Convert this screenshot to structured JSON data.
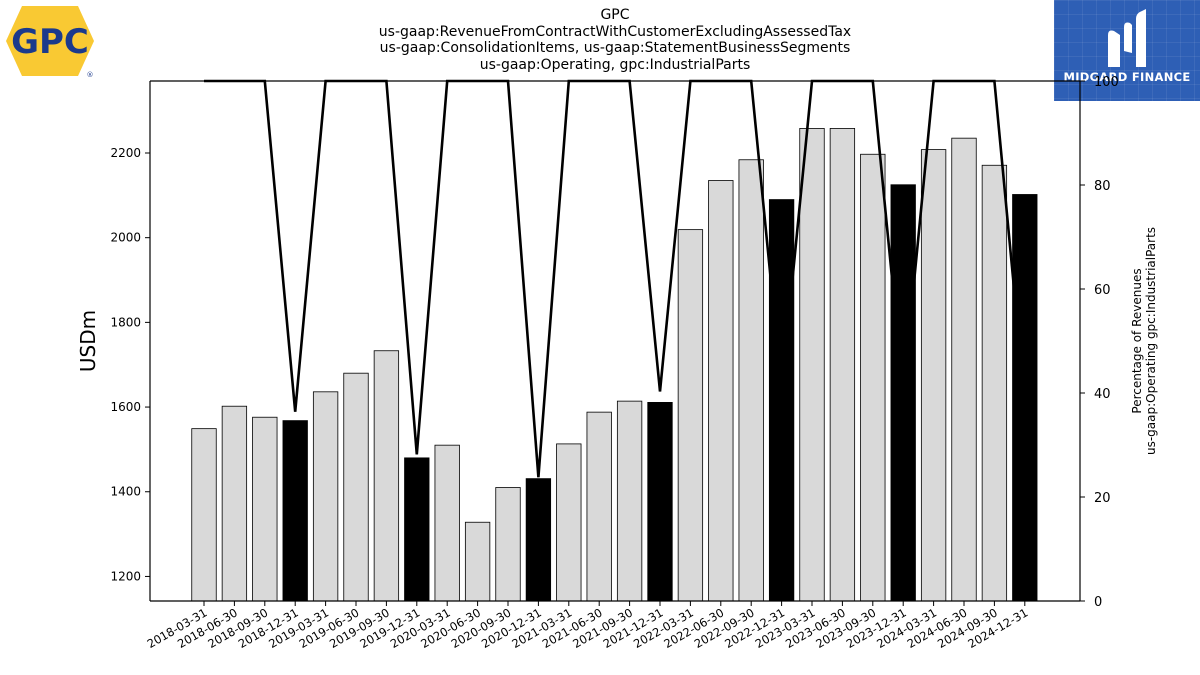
{
  "title_lines": [
    "GPC",
    "us-gaap:RevenueFromContractWithCustomerExcludingAssessedTax",
    "us-gaap:ConsolidationItems, us-gaap:StatementBusinessSegments",
    "us-gaap:Operating, gpc:IndustrialParts"
  ],
  "logos": {
    "left_text": "GPC",
    "left_registered": "®",
    "right_brand": "MIDGARD FINANCE"
  },
  "colors": {
    "bar_regular": "#d9d9d9",
    "bar_q4": "#000000",
    "line": "#000000",
    "brand_blue": "#2e5fb5",
    "gpc_yellow": "#f9c933",
    "gpc_blue": "#1b3a8c"
  },
  "chart_data": {
    "type": "bar",
    "title": "GPC",
    "ylabel": "USDm",
    "y2label": [
      "Percentage of Revenues",
      "us-gaap:Operating gpc:IndustrialParts"
    ],
    "ylim": [
      1142,
      2370
    ],
    "y2lim": [
      0,
      100
    ],
    "yticks": [
      1200,
      1400,
      1600,
      1800,
      2000,
      2200
    ],
    "y2ticks": [
      0,
      20,
      40,
      60,
      80,
      100
    ],
    "categories": [
      "2018-03-31",
      "2018-06-30",
      "2018-09-30",
      "2018-12-31",
      "2019-03-31",
      "2019-06-30",
      "2019-09-30",
      "2019-12-31",
      "2020-03-31",
      "2020-06-30",
      "2020-09-30",
      "2020-12-31",
      "2021-03-31",
      "2021-06-30",
      "2021-09-30",
      "2021-12-31",
      "2022-03-31",
      "2022-06-30",
      "2022-09-30",
      "2022-12-31",
      "2023-03-31",
      "2023-06-30",
      "2023-09-30",
      "2023-12-31",
      "2024-03-31",
      "2024-06-30",
      "2024-09-30",
      "2024-12-31"
    ],
    "values": [
      1549,
      1602,
      1576,
      1568,
      1636,
      1680,
      1733,
      1480,
      1510,
      1328,
      1410,
      1431,
      1513,
      1588,
      1614,
      1611,
      2019,
      2135,
      2184,
      2090,
      2258,
      2258,
      2197,
      2125,
      2208,
      2235,
      2171,
      2102
    ],
    "series": [
      {
        "name": "Percentage of Revenues",
        "axis": "right",
        "type": "line",
        "values": [
          100,
          100,
          100,
          36.4,
          100,
          100,
          100,
          28.2,
          100,
          100,
          100,
          23.8,
          100,
          100,
          100,
          40.3,
          100,
          100,
          100,
          40.7,
          100,
          100,
          100,
          40.0,
          100,
          100,
          100,
          38.2
        ]
      }
    ],
    "highlight_rule": "Q4 (12-31) bars drawn black",
    "grid": false
  }
}
